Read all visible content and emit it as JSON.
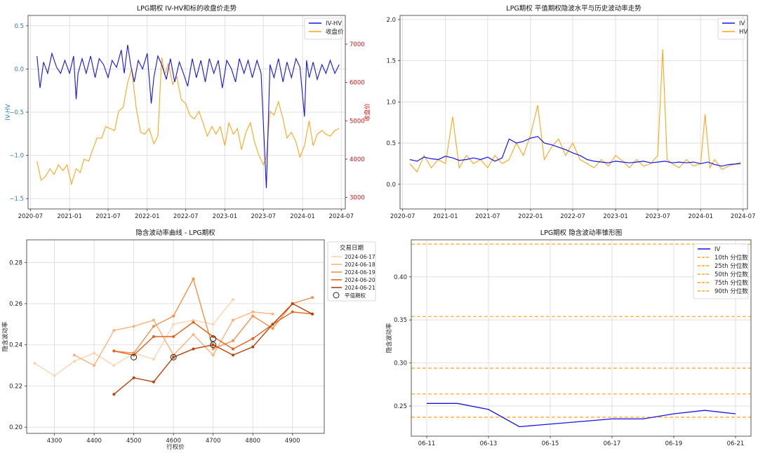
{
  "chart_data": [
    {
      "type": "line",
      "title": "LPG期权 IV-HV和标的收盘价走势",
      "xlabel": "",
      "ylabel": "IV-HV",
      "y2label": "收盘价",
      "xlim": [
        "2020-06-20",
        "2024-07-20"
      ],
      "ylim": [
        -1.62,
        0.62
      ],
      "y2lim": [
        2700,
        7750
      ],
      "x_ticks": [
        "2020-07",
        "2021-01",
        "2021-07",
        "2022-01",
        "2022-07",
        "2023-01",
        "2023-07",
        "2024-01",
        "2024-07"
      ],
      "y_ticks": [
        -1.5,
        -1.0,
        -0.5,
        0.0,
        0.5
      ],
      "y_tick_labels": [
        "−1.5",
        "−1.0",
        "−0.5",
        "0.0",
        "0.5"
      ],
      "y2_ticks": [
        3000,
        4000,
        5000,
        6000,
        7000
      ],
      "grid": true,
      "legend_position": "top-right",
      "colors": {
        "iv_hv": "#1414e6",
        "close": "#ffa51c",
        "y2": "#e01010",
        "y1": "#3a78b5"
      },
      "series": [
        {
          "name": "IV-HV",
          "axis": "left",
          "x": [
            "2020-08-01",
            "2020-08-15",
            "2020-09-01",
            "2020-09-20",
            "2020-10-10",
            "2020-11-01",
            "2020-11-20",
            "2020-12-10",
            "2021-01-01",
            "2021-01-20",
            "2021-02-01",
            "2021-02-10",
            "2021-03-01",
            "2021-03-20",
            "2021-04-10",
            "2021-05-01",
            "2021-05-20",
            "2021-06-10",
            "2021-07-01",
            "2021-07-20",
            "2021-08-10",
            "2021-09-01",
            "2021-09-15",
            "2021-10-01",
            "2021-10-15",
            "2021-11-01",
            "2021-11-20",
            "2021-12-10",
            "2022-01-01",
            "2022-01-20",
            "2022-02-01",
            "2022-02-20",
            "2022-03-10",
            "2022-04-01",
            "2022-04-20",
            "2022-05-10",
            "2022-06-01",
            "2022-06-20",
            "2022-07-10",
            "2022-08-01",
            "2022-08-20",
            "2022-09-10",
            "2022-10-01",
            "2022-10-20",
            "2022-11-10",
            "2022-12-01",
            "2022-12-20",
            "2023-01-10",
            "2023-02-01",
            "2023-02-20",
            "2023-03-10",
            "2023-04-01",
            "2023-04-20",
            "2023-05-10",
            "2023-06-01",
            "2023-06-20",
            "2023-07-05",
            "2023-07-15",
            "2023-08-01",
            "2023-08-20",
            "2023-09-10",
            "2023-10-01",
            "2023-10-20",
            "2023-11-10",
            "2023-12-01",
            "2023-12-20",
            "2024-01-10",
            "2024-01-20",
            "2024-02-01",
            "2024-02-20",
            "2024-03-10",
            "2024-04-01",
            "2024-04-20",
            "2024-05-10",
            "2024-06-01",
            "2024-06-21"
          ],
          "values": [
            0.15,
            -0.22,
            0.08,
            -0.05,
            0.18,
            0.02,
            -0.05,
            0.1,
            -0.05,
            0.15,
            -0.35,
            -0.05,
            0.12,
            -0.05,
            0.15,
            -0.1,
            0.12,
            0.05,
            -0.1,
            0.1,
            0.02,
            0.22,
            -0.05,
            0.28,
            0.05,
            -0.15,
            0.1,
            0.0,
            0.18,
            -0.4,
            -0.1,
            0.15,
            0.05,
            -0.12,
            0.12,
            -0.15,
            0.08,
            -0.05,
            -0.2,
            0.12,
            -0.1,
            0.1,
            -0.15,
            0.12,
            -0.05,
            0.1,
            -0.22,
            0.1,
            0.0,
            -0.15,
            0.12,
            -0.05,
            0.1,
            -0.1,
            0.1,
            -0.05,
            -0.85,
            -1.38,
            0.05,
            -0.1,
            0.12,
            -0.15,
            0.08,
            -0.1,
            0.12,
            0.02,
            -0.55,
            0.1,
            -0.1,
            0.08,
            -0.12,
            0.05,
            -0.05,
            0.1,
            -0.05,
            0.05
          ]
        },
        {
          "name": "收盘价",
          "axis": "right",
          "x": [
            "2020-08-01",
            "2020-08-20",
            "2020-09-10",
            "2020-10-01",
            "2020-10-20",
            "2020-11-10",
            "2020-12-01",
            "2020-12-20",
            "2021-01-10",
            "2021-02-01",
            "2021-02-20",
            "2021-03-10",
            "2021-04-01",
            "2021-04-20",
            "2021-05-10",
            "2021-06-01",
            "2021-06-20",
            "2021-07-10",
            "2021-08-01",
            "2021-08-20",
            "2021-09-10",
            "2021-10-01",
            "2021-10-20",
            "2021-11-10",
            "2021-12-01",
            "2021-12-20",
            "2022-01-10",
            "2022-02-01",
            "2022-02-20",
            "2022-03-10",
            "2022-03-25",
            "2022-04-10",
            "2022-05-01",
            "2022-05-20",
            "2022-06-10",
            "2022-07-01",
            "2022-07-20",
            "2022-08-10",
            "2022-09-01",
            "2022-09-20",
            "2022-10-10",
            "2022-11-01",
            "2022-11-20",
            "2022-12-10",
            "2023-01-01",
            "2023-01-20",
            "2023-02-10",
            "2023-03-01",
            "2023-03-20",
            "2023-04-10",
            "2023-05-01",
            "2023-05-20",
            "2023-06-10",
            "2023-07-01",
            "2023-07-15",
            "2023-08-01",
            "2023-08-20",
            "2023-09-10",
            "2023-10-01",
            "2023-10-20",
            "2023-11-10",
            "2023-12-01",
            "2023-12-20",
            "2024-01-10",
            "2024-02-01",
            "2024-02-20",
            "2024-03-10",
            "2024-04-01",
            "2024-04-20",
            "2024-05-10",
            "2024-06-01",
            "2024-06-21"
          ],
          "values": [
            3950,
            3450,
            3550,
            3750,
            3600,
            3850,
            3700,
            3850,
            3350,
            3750,
            3650,
            4000,
            3950,
            4250,
            4550,
            4550,
            4850,
            4800,
            4750,
            5250,
            5350,
            6000,
            6350,
            5350,
            4700,
            4650,
            4800,
            4400,
            4600,
            6650,
            6200,
            6500,
            5950,
            6150,
            5550,
            5450,
            5150,
            5050,
            5250,
            4950,
            4600,
            4850,
            4650,
            4850,
            4350,
            4950,
            4650,
            4800,
            4250,
            4700,
            4950,
            4450,
            4100,
            3850,
            4050,
            5250,
            5150,
            5500,
            5050,
            4550,
            4700,
            4450,
            4050,
            4350,
            5000,
            4350,
            4650,
            4750,
            4650,
            4600,
            4750,
            4800
          ]
        }
      ]
    },
    {
      "type": "line",
      "title": "LPG期权 平值期权隐波水平与历史波动率走势",
      "xlabel": "",
      "ylabel": "",
      "xlim": [
        "2020-06-20",
        "2024-07-20"
      ],
      "ylim": [
        -0.3,
        2.05
      ],
      "x_ticks": [
        "2020-07",
        "2021-01",
        "2021-07",
        "2022-01",
        "2022-07",
        "2023-01",
        "2023-07",
        "2024-01",
        "2024-07"
      ],
      "y_ticks": [
        0.0,
        0.5,
        1.0,
        1.5,
        2.0
      ],
      "grid": true,
      "legend_position": "top-right",
      "colors": {
        "iv": "#1414e6",
        "hv": "#ffa51c"
      },
      "series": [
        {
          "name": "IV",
          "x": [
            "2020-08-01",
            "2020-09-01",
            "2020-10-01",
            "2020-11-01",
            "2020-12-01",
            "2021-01-01",
            "2021-02-01",
            "2021-03-01",
            "2021-04-01",
            "2021-05-01",
            "2021-06-01",
            "2021-07-01",
            "2021-08-01",
            "2021-09-01",
            "2021-10-01",
            "2021-11-01",
            "2021-12-01",
            "2022-01-01",
            "2022-02-01",
            "2022-03-01",
            "2022-04-01",
            "2022-05-01",
            "2022-06-01",
            "2022-07-01",
            "2022-08-01",
            "2022-09-01",
            "2022-10-01",
            "2022-11-01",
            "2022-12-01",
            "2023-01-01",
            "2023-02-01",
            "2023-03-01",
            "2023-04-01",
            "2023-05-01",
            "2023-06-01",
            "2023-07-01",
            "2023-08-01",
            "2023-09-01",
            "2023-10-01",
            "2023-11-01",
            "2023-12-01",
            "2024-01-01",
            "2024-02-01",
            "2024-03-01",
            "2024-04-01",
            "2024-05-01",
            "2024-06-21"
          ],
          "values": [
            0.3,
            0.28,
            0.33,
            0.31,
            0.3,
            0.34,
            0.32,
            0.29,
            0.3,
            0.32,
            0.3,
            0.33,
            0.28,
            0.32,
            0.55,
            0.5,
            0.52,
            0.56,
            0.58,
            0.5,
            0.48,
            0.45,
            0.42,
            0.38,
            0.35,
            0.3,
            0.28,
            0.27,
            0.26,
            0.28,
            0.27,
            0.26,
            0.27,
            0.28,
            0.26,
            0.27,
            0.28,
            0.26,
            0.27,
            0.26,
            0.27,
            0.25,
            0.27,
            0.24,
            0.22,
            0.24,
            0.25
          ]
        },
        {
          "name": "HV",
          "x": [
            "2020-08-01",
            "2020-09-01",
            "2020-10-01",
            "2020-11-01",
            "2020-12-01",
            "2021-01-01",
            "2021-02-01",
            "2021-03-01",
            "2021-04-01",
            "2021-05-01",
            "2021-06-01",
            "2021-07-01",
            "2021-08-01",
            "2021-09-01",
            "2021-10-01",
            "2021-11-01",
            "2021-12-01",
            "2022-01-01",
            "2022-02-01",
            "2022-03-01",
            "2022-04-01",
            "2022-05-01",
            "2022-06-01",
            "2022-07-01",
            "2022-08-01",
            "2022-09-01",
            "2022-10-01",
            "2022-11-01",
            "2022-12-01",
            "2023-01-01",
            "2023-02-01",
            "2023-03-01",
            "2023-04-01",
            "2023-05-01",
            "2023-06-01",
            "2023-07-01",
            "2023-07-22",
            "2023-08-10",
            "2023-09-01",
            "2023-10-01",
            "2023-11-01",
            "2023-12-01",
            "2024-01-01",
            "2024-01-20",
            "2024-02-10",
            "2024-03-01",
            "2024-04-01",
            "2024-05-01",
            "2024-06-21"
          ],
          "values": [
            0.25,
            0.15,
            0.35,
            0.2,
            0.3,
            0.25,
            0.82,
            0.2,
            0.35,
            0.25,
            0.3,
            0.2,
            0.35,
            0.25,
            0.3,
            0.5,
            0.35,
            0.6,
            0.96,
            0.3,
            0.45,
            0.55,
            0.35,
            0.5,
            0.3,
            0.25,
            0.2,
            0.3,
            0.22,
            0.35,
            0.28,
            0.2,
            0.3,
            0.22,
            0.25,
            0.35,
            1.64,
            0.3,
            0.25,
            0.2,
            0.3,
            0.22,
            0.25,
            0.85,
            0.2,
            0.3,
            0.18,
            0.22,
            0.27
          ]
        }
      ]
    },
    {
      "type": "line",
      "title": "隐含波动率曲线 - LPG期权",
      "xlabel": "行权价",
      "ylabel": "隐含波动率",
      "xlim": [
        4230,
        4980
      ],
      "ylim": [
        0.197,
        0.291
      ],
      "x_ticks": [
        4300,
        4400,
        4500,
        4600,
        4700,
        4800,
        4900
      ],
      "y_ticks": [
        0.2,
        0.22,
        0.24,
        0.26,
        0.28
      ],
      "grid": true,
      "legend_title": "交易日期",
      "legend_position": "outside-right",
      "series": [
        {
          "name": "2024-06-17",
          "color": "#fdd4b0",
          "x": [
            4250,
            4300,
            4350,
            4400,
            4450,
            4500,
            4550,
            4600,
            4650,
            4700,
            4750
          ],
          "values": [
            0.231,
            0.225,
            0.232,
            0.236,
            0.23,
            0.236,
            0.233,
            0.25,
            0.252,
            0.25,
            0.262
          ]
        },
        {
          "name": "2024-06-18",
          "color": "#fdb27b",
          "x": [
            4350,
            4400,
            4450,
            4500,
            4550,
            4600,
            4650,
            4700,
            4750,
            4800,
            4850
          ],
          "values": [
            0.235,
            0.23,
            0.247,
            0.249,
            0.252,
            0.235,
            0.245,
            0.235,
            0.252,
            0.256,
            0.255
          ]
        },
        {
          "name": "2024-06-19",
          "color": "#f78f4a",
          "x": [
            4450,
            4500,
            4550,
            4600,
            4650,
            4700,
            4750,
            4800,
            4850,
            4900,
            4950
          ],
          "values": [
            0.237,
            0.236,
            0.249,
            0.254,
            0.272,
            0.238,
            0.242,
            0.254,
            0.248,
            0.26,
            0.263
          ]
        },
        {
          "name": "2024-06-20",
          "color": "#e5621a",
          "x": [
            4450,
            4500,
            4550,
            4600,
            4650,
            4700,
            4750,
            4800,
            4850,
            4900,
            4950
          ],
          "values": [
            0.237,
            0.235,
            0.244,
            0.244,
            0.251,
            0.244,
            0.238,
            0.243,
            0.25,
            0.256,
            0.255
          ]
        },
        {
          "name": "2024-06-21",
          "color": "#b84208",
          "x": [
            4450,
            4500,
            4550,
            4600,
            4650,
            4700,
            4750,
            4800,
            4850,
            4900,
            4950
          ],
          "values": [
            0.216,
            0.224,
            0.222,
            0.234,
            0.238,
            0.24,
            0.235,
            0.239,
            0.25,
            0.26,
            0.255
          ]
        }
      ],
      "atm_label": "平值期权",
      "atm_points": [
        {
          "x": 4500,
          "y": 0.234
        },
        {
          "x": 4600,
          "y": 0.234
        },
        {
          "x": 4700,
          "y": 0.24
        },
        {
          "x": 4700,
          "y": 0.243
        }
      ]
    },
    {
      "type": "line",
      "title": "LPG期权 隐含波动率锥形图",
      "xlabel": "",
      "ylabel": "隐含波动率",
      "xlim": [
        "2024-06-10 12:00",
        "2024-06-21 12:00"
      ],
      "ylim": [
        0.215,
        0.443
      ],
      "x_ticks": [
        "06-11",
        "06-13",
        "06-15",
        "06-17",
        "06-19",
        "06-21"
      ],
      "y_ticks": [
        0.25,
        0.3,
        0.35,
        0.4
      ],
      "grid": true,
      "legend_position": "top-right",
      "colors": {
        "iv": "#1414e6",
        "quantile": "#ffa51c"
      },
      "series": [
        {
          "name": "IV",
          "x": [
            "06-11",
            "06-12",
            "06-13",
            "06-14",
            "06-17",
            "06-18",
            "06-19",
            "06-20",
            "06-21"
          ],
          "values": [
            0.253,
            0.253,
            0.246,
            0.226,
            0.235,
            0.235,
            0.241,
            0.245,
            0.241
          ]
        }
      ],
      "quantiles": [
        {
          "name": "10th 分位数",
          "value": 0.237
        },
        {
          "name": "25th 分位数",
          "value": 0.264
        },
        {
          "name": "50th 分位数",
          "value": 0.294
        },
        {
          "name": "75th 分位数",
          "value": 0.354
        },
        {
          "name": "90th 分位数",
          "value": 0.438
        }
      ]
    }
  ]
}
